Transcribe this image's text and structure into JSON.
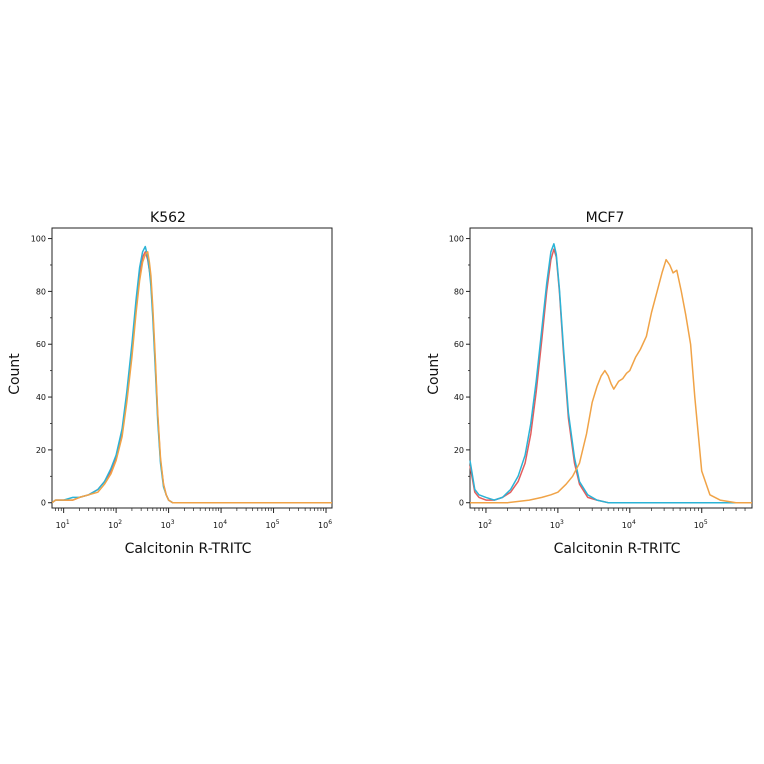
{
  "chart_data": [
    {
      "type": "line",
      "title": "K562",
      "xlabel": "Calcitonin R-TRITC",
      "ylabel": "Count",
      "xscale": "log",
      "xlim": [
        6,
        1300000
      ],
      "ylim": [
        -2,
        104
      ],
      "yticks": [
        0,
        20,
        40,
        60,
        80,
        100
      ],
      "xticks": [
        {
          "value": 10,
          "base": "10",
          "exp": "1"
        },
        {
          "value": 100,
          "base": "10",
          "exp": "2"
        },
        {
          "value": 1000,
          "base": "10",
          "exp": "3"
        },
        {
          "value": 10000,
          "base": "10",
          "exp": "4"
        },
        {
          "value": 100000,
          "base": "10",
          "exp": "5"
        },
        {
          "value": 1000000,
          "base": "10",
          "exp": "6"
        }
      ],
      "grid": false,
      "legend": "none",
      "series": [
        {
          "color": "#e35d5d",
          "x": [
            6,
            7,
            8,
            10,
            15,
            20,
            30,
            45,
            60,
            80,
            100,
            130,
            160,
            200,
            240,
            280,
            320,
            360,
            400,
            430,
            460,
            500,
            560,
            620,
            700,
            800,
            900,
            1000,
            1200,
            1500,
            2000,
            5000,
            20000,
            100000,
            1300000
          ],
          "y": [
            0,
            1,
            1,
            1,
            1,
            2,
            3,
            5,
            8,
            12,
            17,
            26,
            40,
            58,
            74,
            86,
            93,
            95,
            92,
            88,
            84,
            72,
            52,
            33,
            16,
            7,
            3,
            1,
            0,
            0,
            0,
            0,
            0,
            0,
            0
          ]
        },
        {
          "color": "#2bb3d6",
          "x": [
            6,
            7,
            8,
            10,
            15,
            20,
            30,
            45,
            60,
            80,
            100,
            130,
            160,
            200,
            240,
            280,
            320,
            360,
            400,
            430,
            460,
            500,
            560,
            620,
            700,
            800,
            900,
            1000,
            1200,
            1500,
            2000,
            5000,
            20000,
            100000,
            1300000
          ],
          "y": [
            0,
            1,
            1,
            1,
            2,
            2,
            3,
            5,
            8,
            13,
            18,
            28,
            42,
            60,
            77,
            89,
            95,
            97,
            93,
            88,
            82,
            70,
            50,
            31,
            15,
            6,
            3,
            1,
            0,
            0,
            0,
            0,
            0,
            0,
            0
          ]
        },
        {
          "color": "#f0a347",
          "x": [
            6,
            7,
            8,
            10,
            15,
            20,
            30,
            45,
            60,
            80,
            100,
            130,
            160,
            200,
            240,
            280,
            320,
            360,
            400,
            430,
            460,
            500,
            560,
            620,
            700,
            800,
            900,
            1000,
            1200,
            1500,
            2000,
            5000,
            20000,
            100000,
            1300000
          ],
          "y": [
            0,
            1,
            1,
            1,
            1,
            2,
            3,
            4,
            7,
            11,
            16,
            25,
            38,
            55,
            72,
            84,
            91,
            94,
            95,
            91,
            86,
            74,
            54,
            34,
            17,
            7,
            3,
            1,
            0,
            0,
            0,
            0,
            0,
            0,
            0
          ]
        }
      ]
    },
    {
      "type": "line",
      "title": "MCF7",
      "xlabel": "Calcitonin R-TRITC",
      "ylabel": "Count",
      "xscale": "log",
      "xlim": [
        60,
        500000
      ],
      "ylim": [
        -2,
        104
      ],
      "yticks": [
        0,
        20,
        40,
        60,
        80,
        100
      ],
      "xticks": [
        {
          "value": 100,
          "base": "10",
          "exp": "2"
        },
        {
          "value": 1000,
          "base": "10",
          "exp": "3"
        },
        {
          "value": 10000,
          "base": "10",
          "exp": "4"
        },
        {
          "value": 100000,
          "base": "10",
          "exp": "5"
        }
      ],
      "grid": false,
      "legend": "none",
      "series": [
        {
          "color": "#e35d5d",
          "x": [
            60,
            70,
            80,
            100,
            130,
            170,
            220,
            280,
            350,
            420,
            500,
            600,
            700,
            800,
            880,
            950,
            1050,
            1200,
            1400,
            1700,
            2000,
            2600,
            3500,
            5000,
            10000,
            100000,
            500000
          ],
          "y": [
            14,
            4,
            2,
            1,
            1,
            2,
            4,
            8,
            15,
            26,
            42,
            62,
            80,
            92,
            96,
            93,
            80,
            56,
            32,
            15,
            7,
            2,
            1,
            0,
            0,
            0,
            0
          ]
        },
        {
          "color": "#2bb3d6",
          "x": [
            60,
            70,
            80,
            100,
            130,
            170,
            220,
            280,
            350,
            420,
            500,
            600,
            700,
            800,
            880,
            950,
            1050,
            1200,
            1400,
            1700,
            2000,
            2600,
            3500,
            5000,
            10000,
            100000,
            500000
          ],
          "y": [
            16,
            5,
            3,
            2,
            1,
            2,
            5,
            10,
            18,
            30,
            46,
            66,
            83,
            95,
            98,
            94,
            81,
            58,
            34,
            17,
            8,
            3,
            1,
            0,
            0,
            0,
            0
          ]
        },
        {
          "color": "#f0a347",
          "x": [
            60,
            200,
            400,
            600,
            800,
            1000,
            1300,
            1600,
            2000,
            2500,
            3000,
            3500,
            4000,
            4500,
            5000,
            5500,
            6000,
            7000,
            8000,
            9000,
            10000,
            12000,
            14000,
            17000,
            20000,
            24000,
            28000,
            32000,
            36000,
            40000,
            45000,
            52000,
            60000,
            70000,
            80000,
            100000,
            130000,
            180000,
            300000,
            500000
          ],
          "y": [
            0,
            0,
            1,
            2,
            3,
            4,
            7,
            10,
            15,
            26,
            38,
            44,
            48,
            50,
            48,
            45,
            43,
            46,
            47,
            49,
            50,
            55,
            58,
            63,
            72,
            80,
            87,
            92,
            90,
            87,
            88,
            80,
            71,
            60,
            40,
            12,
            3,
            1,
            0,
            0
          ]
        }
      ]
    }
  ]
}
